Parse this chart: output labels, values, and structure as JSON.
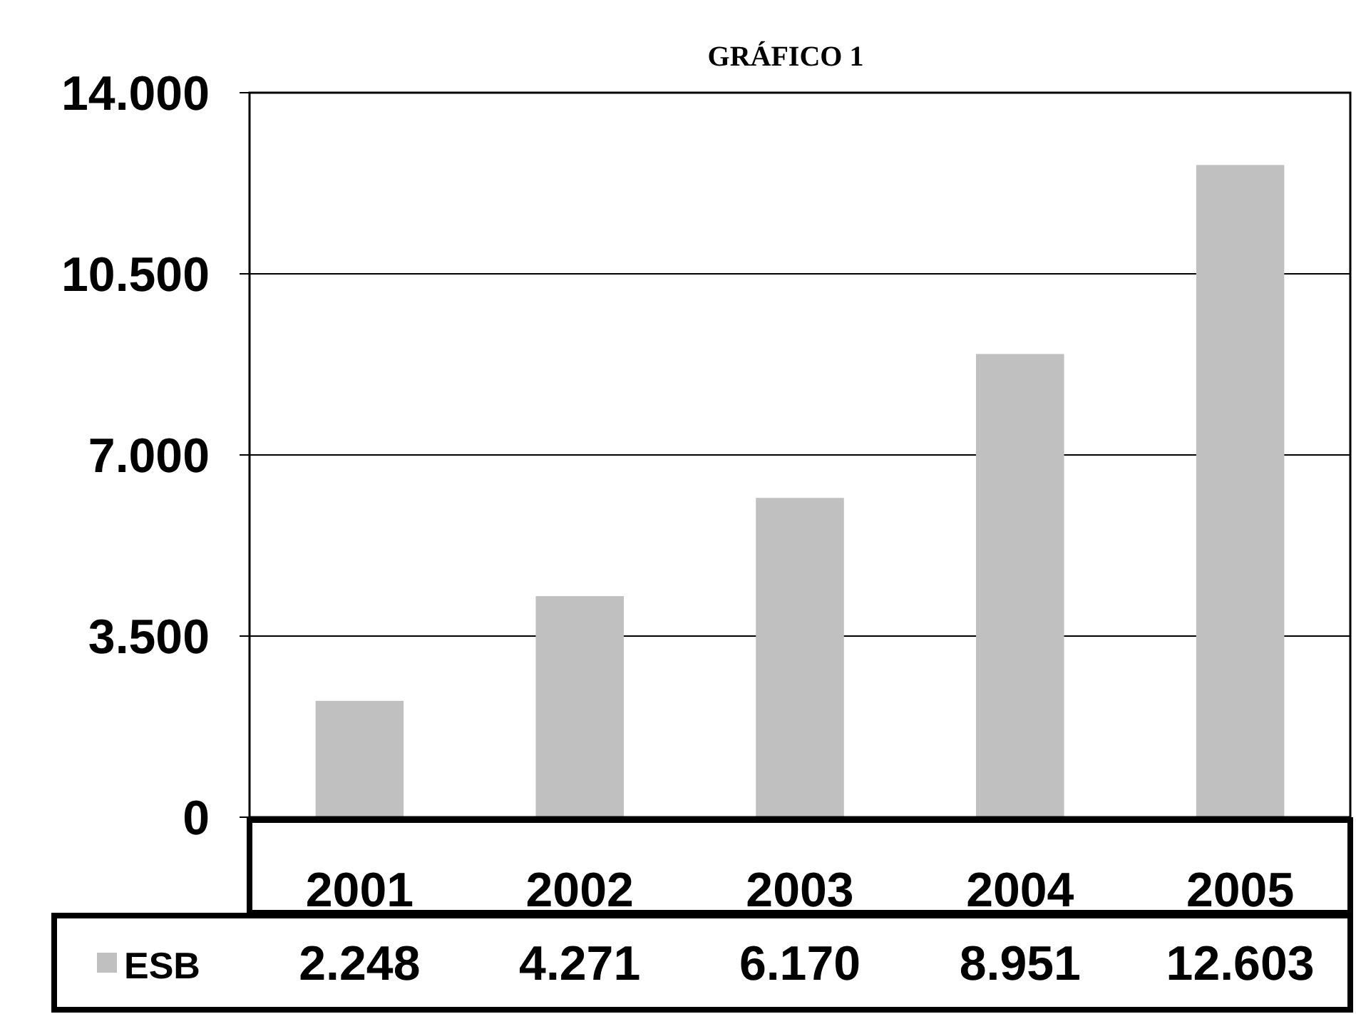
{
  "chart_data": {
    "type": "bar",
    "title": "GRÁFICO 1",
    "categories": [
      "2001",
      "2002",
      "2003",
      "2004",
      "2005"
    ],
    "series": [
      {
        "name": "ESB",
        "color": "#c0c0c0",
        "values": [
          2248,
          4271,
          6170,
          8951,
          12603
        ]
      }
    ],
    "value_labels": [
      "2.248",
      "4.271",
      "6.170",
      "8.951",
      "12.603"
    ],
    "ylim": [
      0,
      14000
    ],
    "yticks": [
      {
        "value": 0,
        "label": "0"
      },
      {
        "value": 3500,
        "label": "3.500"
      },
      {
        "value": 7000,
        "label": "7.000"
      },
      {
        "value": 10500,
        "label": "10.500"
      },
      {
        "value": 14000,
        "label": "14.000"
      }
    ],
    "grid": "y",
    "legend": "bottom"
  }
}
